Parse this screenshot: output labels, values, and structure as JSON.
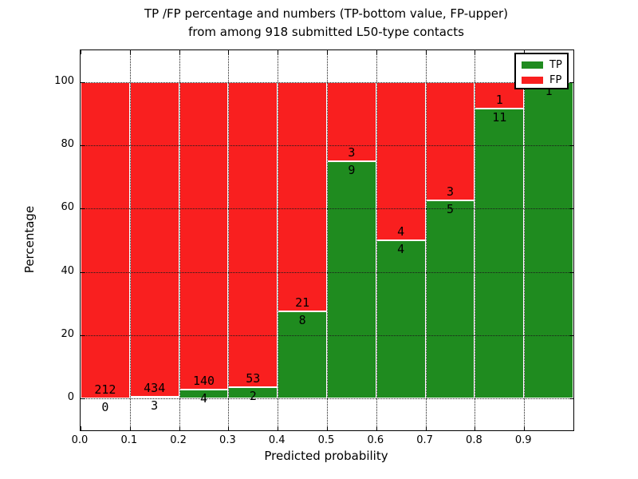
{
  "title": {
    "line1": "TP /FP percentage and numbers (TP-bottom value, FP-upper)",
    "line2": "from among 918 submitted L50-type contacts"
  },
  "axes": {
    "xlabel": "Predicted probability",
    "ylabel": "Percentage"
  },
  "legend": {
    "items": [
      {
        "label": "TP",
        "color": "#1f8b1f"
      },
      {
        "label": "FP",
        "color": "#f91f1f"
      }
    ]
  },
  "chart_data": {
    "type": "bar",
    "subtype": "stacked-100-percent",
    "title": "TP /FP percentage and numbers (TP-bottom value, FP-upper) from among 918 submitted L50-type contacts",
    "xlabel": "Predicted probability",
    "ylabel": "Percentage",
    "total_contacts": 918,
    "xlim": [
      0.0,
      1.0
    ],
    "ylim": [
      -10,
      110
    ],
    "grid": true,
    "legend_position": "upper right",
    "xticks": [
      "0.0",
      "0.1",
      "0.2",
      "0.3",
      "0.4",
      "0.5",
      "0.6",
      "0.7",
      "0.8",
      "0.9"
    ],
    "yticks": [
      "0",
      "20",
      "40",
      "60",
      "80",
      "100"
    ],
    "ytick_values": [
      0,
      20,
      40,
      60,
      80,
      100
    ],
    "colors": {
      "tp": "#1f8b1f",
      "fp": "#f91f1f"
    },
    "series": [
      {
        "name": "TP",
        "position": "bottom",
        "color": "#1f8b1f",
        "counts": [
          0,
          3,
          4,
          2,
          8,
          9,
          4,
          5,
          11,
          1
        ],
        "pct": [
          0.0,
          0.7,
          2.8,
          3.6,
          27.6,
          75.0,
          50.0,
          62.5,
          91.7,
          100.0
        ]
      },
      {
        "name": "FP",
        "position": "top",
        "color": "#f91f1f",
        "counts": [
          212,
          434,
          140,
          53,
          21,
          3,
          4,
          3,
          1,
          0
        ],
        "pct": [
          100.0,
          99.3,
          97.2,
          96.4,
          72.4,
          25.0,
          50.0,
          37.5,
          8.3,
          0.0
        ]
      }
    ],
    "bins": [
      {
        "range": "0.0-0.1",
        "tp": 0,
        "fp": 212,
        "tp_label": "0",
        "fp_label": "212"
      },
      {
        "range": "0.1-0.2",
        "tp": 3,
        "fp": 434,
        "tp_label": "3",
        "fp_label": "434"
      },
      {
        "range": "0.2-0.3",
        "tp": 4,
        "fp": 140,
        "tp_label": "4",
        "fp_label": "140"
      },
      {
        "range": "0.3-0.4",
        "tp": 2,
        "fp": 53,
        "tp_label": "2",
        "fp_label": "53"
      },
      {
        "range": "0.4-0.5",
        "tp": 8,
        "fp": 21,
        "tp_label": "8",
        "fp_label": "21"
      },
      {
        "range": "0.5-0.6",
        "tp": 9,
        "fp": 3,
        "tp_label": "9",
        "fp_label": "3"
      },
      {
        "range": "0.6-0.7",
        "tp": 4,
        "fp": 4,
        "tp_label": "4",
        "fp_label": "4"
      },
      {
        "range": "0.7-0.8",
        "tp": 5,
        "fp": 3,
        "tp_label": "5",
        "fp_label": "3"
      },
      {
        "range": "0.8-0.9",
        "tp": 11,
        "fp": 1,
        "tp_label": "11",
        "fp_label": "1"
      },
      {
        "range": "0.9-1.0",
        "tp": 1,
        "fp": 0,
        "tp_label": "1",
        "fp_label": ""
      }
    ]
  }
}
